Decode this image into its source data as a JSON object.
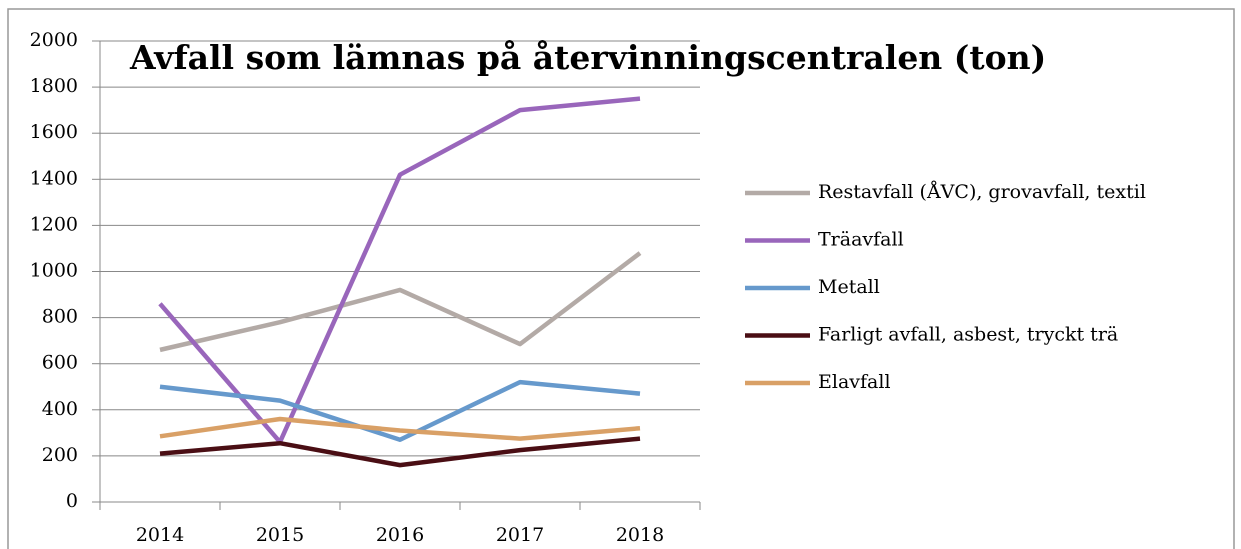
{
  "chart_data": {
    "type": "line",
    "title": "Avfall som lämnas på återvinningscentralen (ton)",
    "categories": [
      "2014",
      "2015",
      "2016",
      "2017",
      "2018"
    ],
    "series": [
      {
        "name": "Restavfall (ÅVC), grovavfall, textil",
        "color": "#b3aaa6",
        "values": [
          660,
          780,
          920,
          685,
          1080
        ]
      },
      {
        "name": "Träavfall",
        "color": "#9966bb",
        "values": [
          860,
          260,
          1420,
          1700,
          1750
        ]
      },
      {
        "name": "Metall",
        "color": "#6699cc",
        "values": [
          500,
          440,
          270,
          520,
          470
        ]
      },
      {
        "name": "Farligt avfall, asbest, tryckt trä",
        "color": "#4a0e14",
        "values": [
          210,
          255,
          160,
          225,
          275
        ]
      },
      {
        "name": "Elavfall",
        "color": "#d9a066",
        "values": [
          285,
          360,
          310,
          275,
          320
        ]
      }
    ],
    "ylim": [
      0,
      2000
    ],
    "yticks": [
      0,
      200,
      400,
      600,
      800,
      1000,
      1200,
      1400,
      1600,
      1800,
      2000
    ],
    "grid": true,
    "legend": "right"
  }
}
